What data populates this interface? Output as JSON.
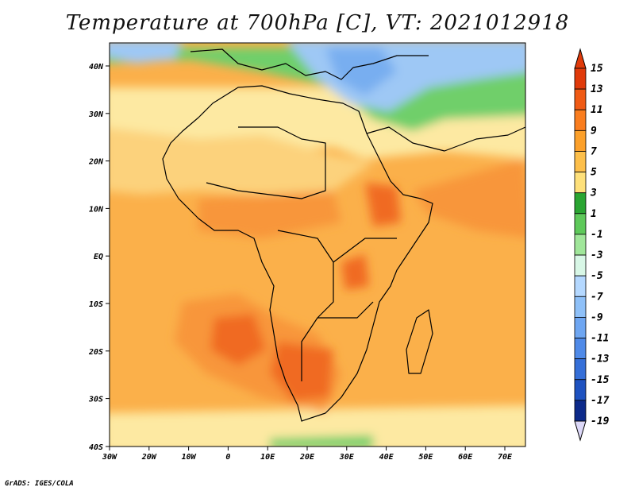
{
  "title": "Temperature at 700hPa [C], VT: 2021012918",
  "credit": "GrADS: IGES/COLA",
  "axes": {
    "lon_labels": [
      "30W",
      "20W",
      "10W",
      "0",
      "10E",
      "20E",
      "30E",
      "40E",
      "50E",
      "60E",
      "70E"
    ],
    "lat_labels": [
      "40N",
      "30N",
      "20N",
      "10N",
      "EQ",
      "10S",
      "20S",
      "30S",
      "40S"
    ]
  },
  "colorbar": {
    "labels": [
      "15",
      "13",
      "11",
      "9",
      "7",
      "5",
      "3",
      "1",
      "-1",
      "-3",
      "-5",
      "-7",
      "-9",
      "-11",
      "-13",
      "-15",
      "-17",
      "-19"
    ],
    "colors": [
      "#e03a0a",
      "#f05a14",
      "#fa7d1e",
      "#fca02a",
      "#fdbf4a",
      "#fee07a",
      "#2aa532",
      "#5ec95a",
      "#a0e69a",
      "#d8f7e6",
      "#b4d8ff",
      "#8ec0f8",
      "#6ea6f2",
      "#4f8ae8",
      "#356fd8",
      "#1e52c0",
      "#0c2a8a"
    ]
  },
  "map_colors": {
    "cold_blue": "#9ec8f5",
    "green": "#6fcf6a",
    "pale_yellow": "#fde9a2",
    "light_orange": "#fcd27c",
    "orange": "#fbb04a",
    "deep_orange": "#f8963a",
    "red_orange": "#f06a22"
  }
}
